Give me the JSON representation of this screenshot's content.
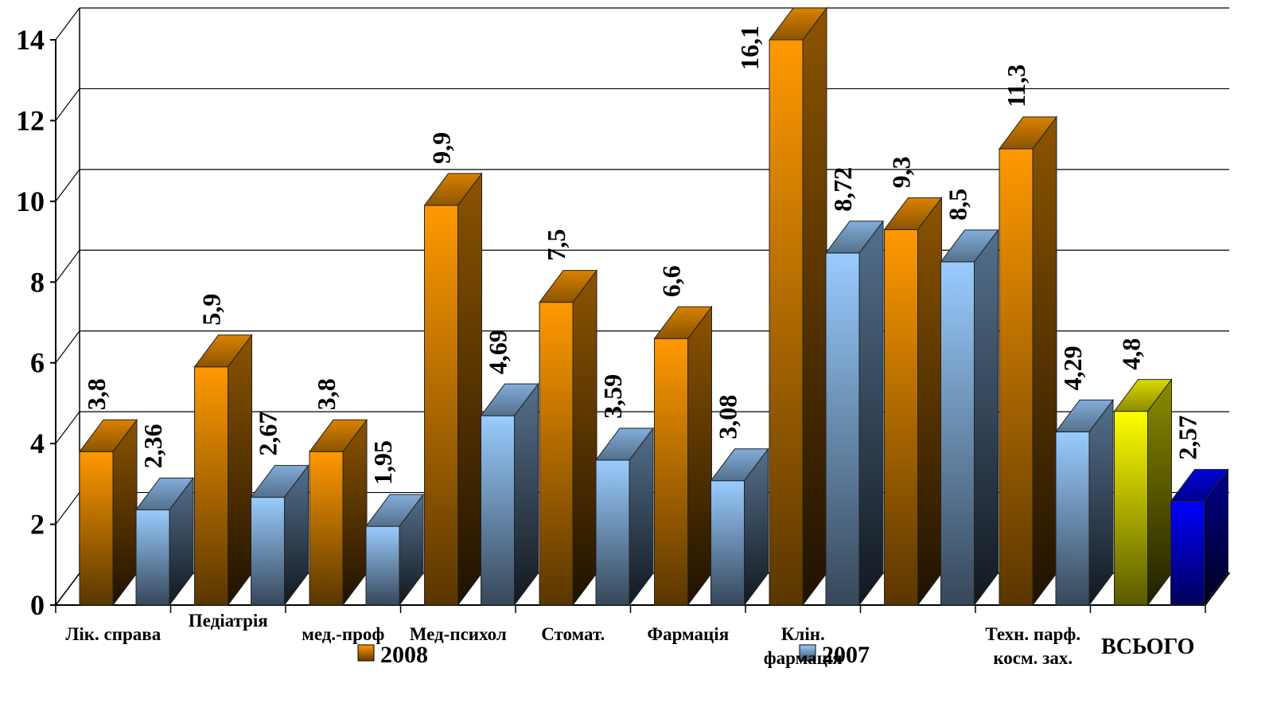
{
  "chart_data": {
    "type": "bar3d",
    "categories": [
      "Лік. справа",
      "Педіатрія",
      "мед.-проф",
      "Мед-психол",
      "Стомат.",
      "Фармація",
      "Клін. фармація",
      null,
      "Техн. парф. косм. зах.",
      "ВСЬОГО"
    ],
    "series": [
      {
        "name": "2008",
        "color": "#ff9900",
        "colors": [
          "#ff9900",
          "#ff9900",
          "#ff9900",
          "#ff9900",
          "#ff9900",
          "#ff9900",
          "#ff9900",
          "#ff9900",
          "#ff9900",
          "#ffff00"
        ],
        "values": [
          3.8,
          5.9,
          3.8,
          9.9,
          7.5,
          6.6,
          16.1,
          9.3,
          11.3,
          4.8
        ],
        "value_labels": [
          "3,8",
          "5,9",
          "3,8",
          "9,9",
          "7,5",
          "6,6",
          "16,1",
          "9,3",
          "11,3",
          "4,8"
        ]
      },
      {
        "name": "2007",
        "color": "#99ccff",
        "colors": [
          "#99ccff",
          "#99ccff",
          "#99ccff",
          "#99ccff",
          "#99ccff",
          "#99ccff",
          "#99ccff",
          "#99ccff",
          "#99ccff",
          "#0000ff"
        ],
        "values": [
          2.36,
          2.67,
          1.95,
          4.69,
          3.59,
          3.08,
          8.72,
          8.5,
          4.29,
          2.57
        ],
        "value_labels": [
          "2,36",
          "2,67",
          "1,95",
          "4,69",
          "3,59",
          "3,08",
          "8,72",
          "8,5",
          "4,29",
          "2,57"
        ]
      }
    ],
    "ylim": [
      0,
      14
    ],
    "yticks": [
      0,
      2,
      4,
      6,
      8,
      10,
      12,
      14
    ],
    "grid": true,
    "legend": "bottom"
  }
}
